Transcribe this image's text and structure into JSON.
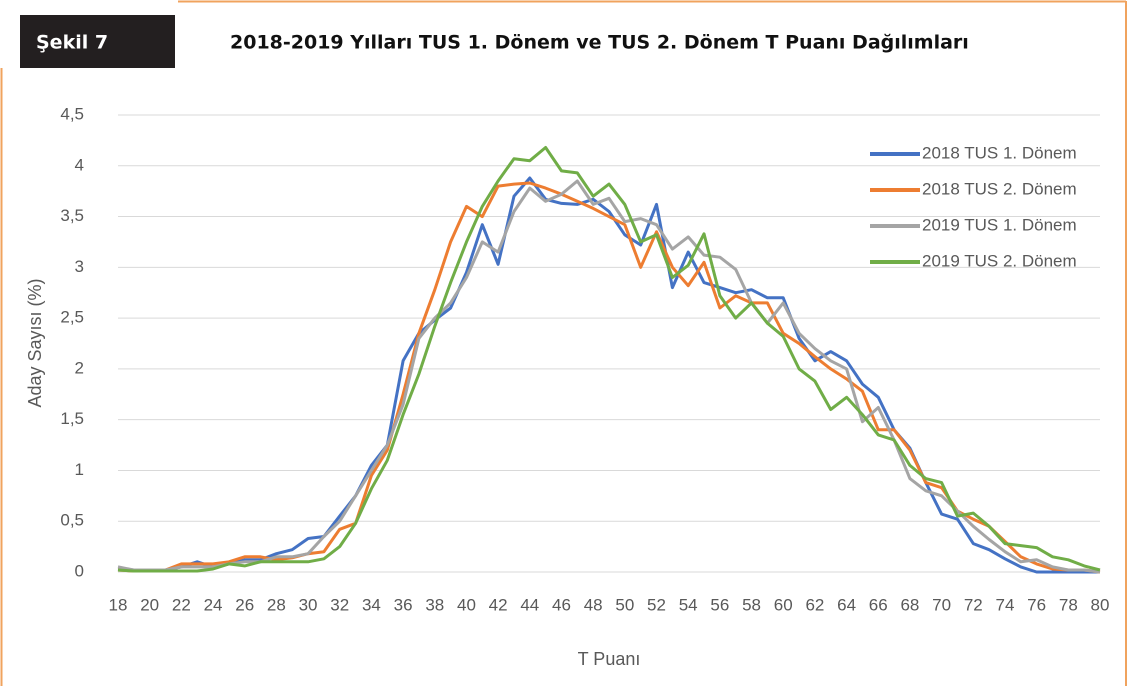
{
  "chart_data": {
    "type": "line",
    "figure_label": "Şekil 7",
    "title": "2018-2019 Yılları TUS 1. Dönem ve TUS 2. Dönem T Puanı Dağılımları",
    "x_label": "T Puanı",
    "y_label": "Aday Sayısı (%)",
    "x": [
      18,
      19,
      20,
      21,
      22,
      23,
      24,
      25,
      26,
      27,
      28,
      29,
      30,
      31,
      32,
      33,
      34,
      35,
      36,
      37,
      38,
      39,
      40,
      41,
      42,
      43,
      44,
      45,
      46,
      47,
      48,
      49,
      50,
      51,
      52,
      53,
      54,
      55,
      56,
      57,
      58,
      59,
      60,
      61,
      62,
      63,
      64,
      65,
      66,
      67,
      68,
      69,
      70,
      71,
      72,
      73,
      74,
      75,
      76,
      77,
      78,
      79,
      80
    ],
    "xlim": [
      18,
      80
    ],
    "xticks": [
      18,
      20,
      22,
      24,
      26,
      28,
      30,
      32,
      34,
      36,
      38,
      40,
      42,
      44,
      46,
      48,
      50,
      52,
      54,
      56,
      58,
      60,
      62,
      64,
      66,
      68,
      70,
      72,
      74,
      76,
      78,
      80
    ],
    "ylim": [
      0,
      4.5
    ],
    "yticks": [
      0,
      {
        "value": 0.5,
        "label": "0,5"
      },
      1,
      {
        "value": 1.5,
        "label": "1,5"
      },
      2,
      {
        "value": 2.5,
        "label": "2,5"
      },
      3,
      {
        "value": 3.5,
        "label": "3,5"
      },
      4,
      {
        "value": 4.5,
        "label": "4,5"
      }
    ],
    "grid": true,
    "legend": "upper right",
    "series": [
      {
        "name": "2018 TUS 1. Dönem",
        "color": "#4472c4",
        "values": [
          0.03,
          0.02,
          0.01,
          0.02,
          0.05,
          0.1,
          0.05,
          0.08,
          0.12,
          0.12,
          0.18,
          0.22,
          0.33,
          0.35,
          0.55,
          0.75,
          1.05,
          1.25,
          2.08,
          2.35,
          2.48,
          2.6,
          2.95,
          3.42,
          3.03,
          3.7,
          3.88,
          3.67,
          3.63,
          3.62,
          3.67,
          3.55,
          3.32,
          3.22,
          3.62,
          2.8,
          3.15,
          2.85,
          2.8,
          2.75,
          2.78,
          2.7,
          2.7,
          2.3,
          2.08,
          2.17,
          2.08,
          1.85,
          1.72,
          1.4,
          1.22,
          0.88,
          0.57,
          0.52,
          0.28,
          0.22,
          0.13,
          0.05,
          0,
          0,
          0,
          0,
          0
        ]
      },
      {
        "name": "2018 TUS 2. Dönem",
        "color": "#ed7d31",
        "values": [
          0.02,
          0.01,
          0.01,
          0.02,
          0.08,
          0.08,
          0.08,
          0.1,
          0.15,
          0.15,
          0.12,
          0.14,
          0.18,
          0.2,
          0.42,
          0.48,
          0.95,
          1.2,
          1.75,
          2.35,
          2.78,
          3.25,
          3.6,
          3.5,
          3.8,
          3.82,
          3.83,
          3.78,
          3.72,
          3.65,
          3.58,
          3.5,
          3.42,
          3.0,
          3.35,
          3.0,
          2.82,
          3.05,
          2.6,
          2.72,
          2.65,
          2.65,
          2.35,
          2.25,
          2.12,
          2.0,
          1.9,
          1.78,
          1.4,
          1.4,
          1.2,
          0.88,
          0.83,
          0.6,
          0.52,
          0.45,
          0.3,
          0.15,
          0.08,
          0.03,
          0.02,
          0.02,
          0
        ]
      },
      {
        "name": "2019 TUS 1. Dönem",
        "color": "#a5a5a5",
        "values": [
          0.05,
          0.02,
          0.02,
          0.02,
          0.05,
          0.05,
          0.05,
          0.08,
          0.1,
          0.1,
          0.15,
          0.15,
          0.18,
          0.35,
          0.5,
          0.75,
          1.0,
          1.25,
          1.65,
          2.3,
          2.5,
          2.65,
          2.9,
          3.25,
          3.15,
          3.55,
          3.78,
          3.65,
          3.72,
          3.85,
          3.62,
          3.68,
          3.45,
          3.48,
          3.42,
          3.18,
          3.3,
          3.12,
          3.1,
          2.98,
          2.65,
          2.45,
          2.65,
          2.35,
          2.2,
          2.08,
          2.0,
          1.48,
          1.62,
          1.3,
          0.92,
          0.8,
          0.75,
          0.6,
          0.45,
          0.32,
          0.2,
          0.1,
          0.12,
          0.05,
          0.02,
          0.02,
          0
        ]
      },
      {
        "name": "2019 TUS 2. Dönem",
        "color": "#70ad47",
        "values": [
          0.02,
          0.01,
          0.01,
          0.01,
          0.01,
          0.01,
          0.03,
          0.08,
          0.06,
          0.1,
          0.1,
          0.1,
          0.1,
          0.13,
          0.25,
          0.48,
          0.82,
          1.1,
          1.55,
          1.95,
          2.42,
          2.85,
          3.25,
          3.6,
          3.85,
          4.07,
          4.05,
          4.18,
          3.95,
          3.93,
          3.7,
          3.82,
          3.62,
          3.25,
          3.32,
          2.9,
          3.02,
          3.33,
          2.72,
          2.5,
          2.65,
          2.45,
          2.32,
          2.0,
          1.88,
          1.6,
          1.72,
          1.55,
          1.35,
          1.3,
          1.05,
          0.92,
          0.88,
          0.55,
          0.58,
          0.45,
          0.28,
          0.26,
          0.24,
          0.15,
          0.12,
          0.06,
          0.02
        ]
      }
    ]
  }
}
